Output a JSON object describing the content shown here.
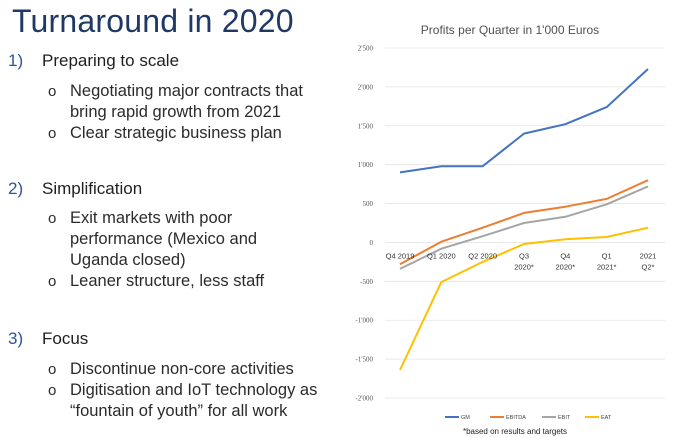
{
  "slide": {
    "title": "Turnaround in 2020",
    "sections": [
      {
        "number": "1)",
        "label": "Preparing to scale",
        "bullets": [
          "Negotiating major contracts that bring rapid growth from 2021",
          "Clear strategic business plan"
        ]
      },
      {
        "number": "2)",
        "label": "Simplification",
        "bullets": [
          "Exit markets with poor performance (Mexico and Uganda closed)",
          "Leaner structure, less staff"
        ]
      },
      {
        "number": "3)",
        "label": "Focus",
        "bullets": [
          "Discontinue non-core activities",
          "Digitisation and IoT technology as “fountain of youth” for all work"
        ]
      }
    ],
    "bullet_glyph": "o"
  },
  "chart_data": {
    "type": "line",
    "title": "Profits per Quarter in 1'000 Euros",
    "xlabel": "",
    "ylabel": "",
    "categories": [
      [
        "Q4 2019"
      ],
      [
        "Q1 2020"
      ],
      [
        "Q2 2020"
      ],
      [
        "Q3",
        "2020*"
      ],
      [
        "Q4",
        "2020*"
      ],
      [
        "Q1",
        "2021*"
      ],
      [
        "2021",
        "Q2*"
      ]
    ],
    "ylim": [
      -2000,
      2500
    ],
    "yticks": [
      2500,
      2000,
      1500,
      1000,
      500,
      0,
      -500,
      -1000,
      -1500,
      -2000
    ],
    "ytick_labels": [
      "2'500",
      "2'000",
      "1'500",
      "1'000",
      "500",
      "0",
      "-500",
      "-1'000",
      "-1'500",
      "-2'000"
    ],
    "grid": true,
    "legend_position": "bottom",
    "series": [
      {
        "name": "GM",
        "color": "#4472c4",
        "values": [
          900,
          980,
          980,
          1400,
          1520,
          1740,
          2230
        ]
      },
      {
        "name": "EBITDA",
        "color": "#ed7d31",
        "values": [
          -280,
          10,
          190,
          380,
          460,
          560,
          800
        ]
      },
      {
        "name": "EBIT",
        "color": "#a5a5a5",
        "values": [
          -340,
          -80,
          80,
          250,
          330,
          490,
          720
        ]
      },
      {
        "name": "EAT",
        "color": "#ffc000",
        "values": [
          -1640,
          -510,
          -250,
          -20,
          40,
          70,
          190
        ]
      }
    ],
    "footnote": "*based on results and targets"
  }
}
